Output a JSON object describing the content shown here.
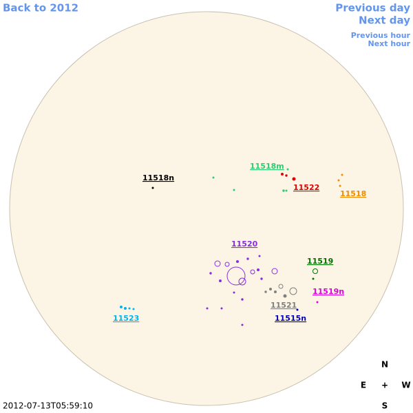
{
  "nav": {
    "back": "Back to 2012",
    "previous_day": "Previous day",
    "next_day": "Next day",
    "previous_hour": "Previous hour",
    "next_hour": "Next hour",
    "color": "#6495ed"
  },
  "regions": [
    {
      "label": "11518n",
      "color": "#000000"
    },
    {
      "label": "11518m",
      "color": "#2ecc71"
    },
    {
      "label": "11522",
      "color": "#e00000"
    },
    {
      "label": "11518",
      "color": "#f08c00"
    },
    {
      "label": "11520",
      "color": "#8a2be2"
    },
    {
      "label": "11519",
      "color": "#007000"
    },
    {
      "label": "11519n",
      "color": "#e000e0"
    },
    {
      "label": "11521",
      "color": "#808080"
    },
    {
      "label": "11515n",
      "color": "#0000c0"
    },
    {
      "label": "11523",
      "color": "#00b4f0"
    }
  ],
  "compass": {
    "north": "N",
    "east": "E",
    "center": "+",
    "west": "W",
    "south": "S"
  },
  "timestamp": "2012-07-13T05:59:10"
}
